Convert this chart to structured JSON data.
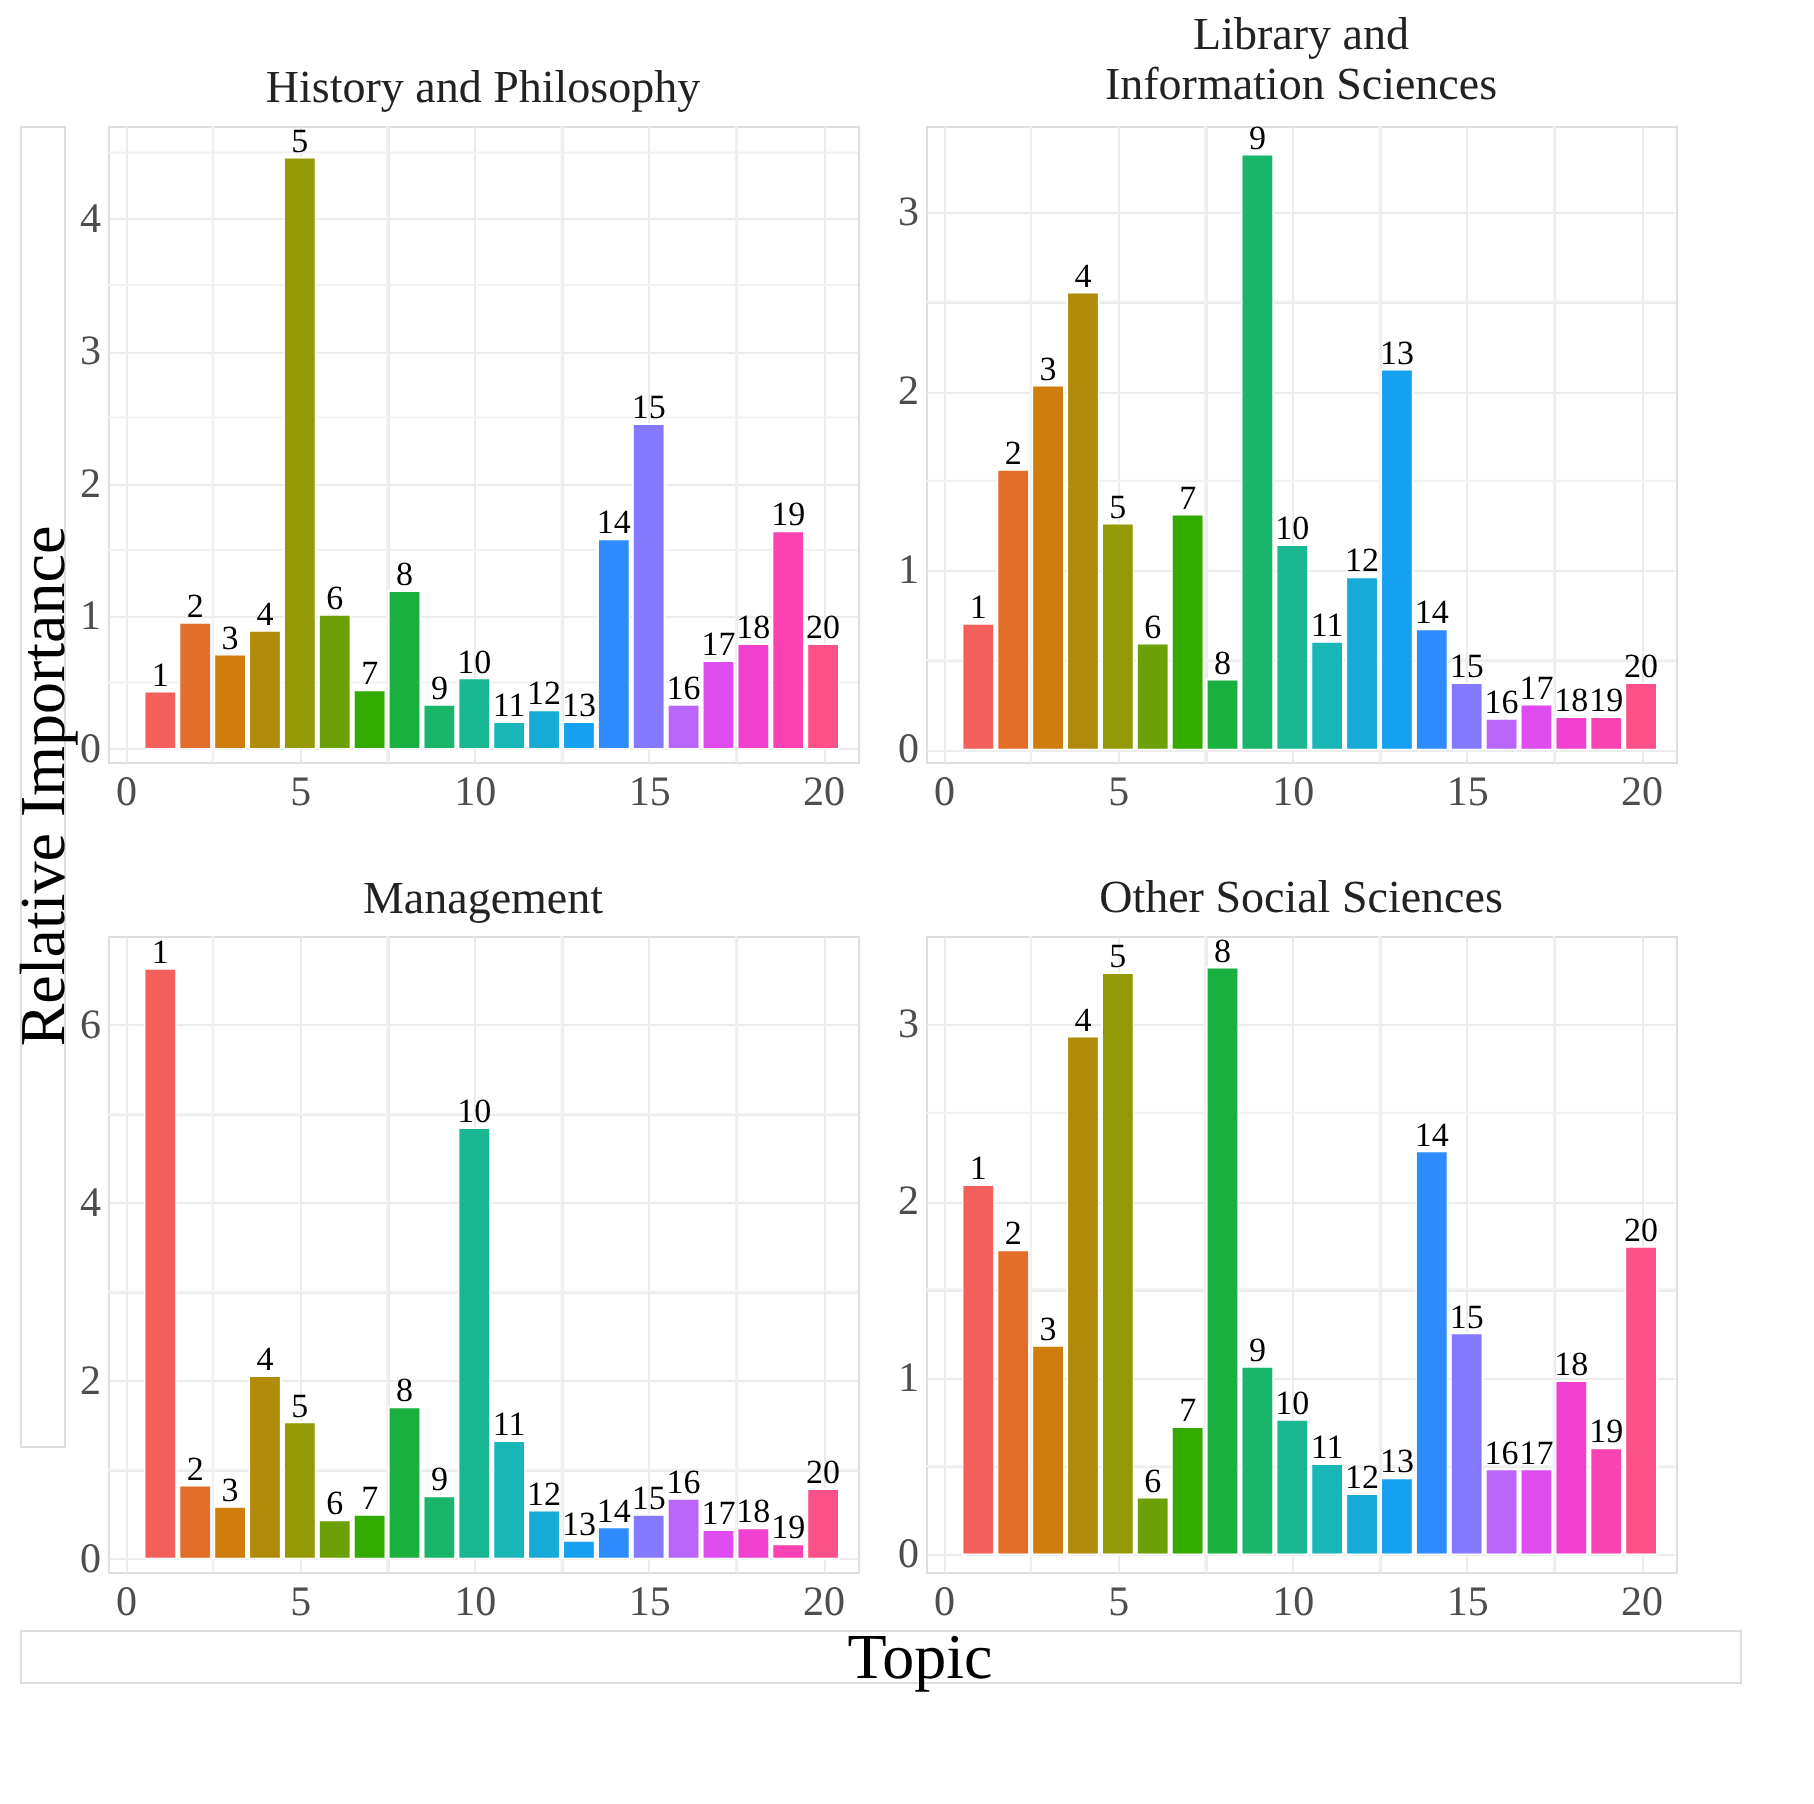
{
  "chart_data": [
    {
      "type": "bar",
      "title": "History and Philosophy",
      "ylabel": "Relative Importance",
      "x": [
        1,
        2,
        3,
        4,
        5,
        6,
        7,
        8,
        9,
        10,
        11,
        12,
        13,
        14,
        15,
        16,
        17,
        18,
        19,
        20
      ],
      "values": [
        0.43,
        0.95,
        0.71,
        0.89,
        4.46,
        1.01,
        0.44,
        1.19,
        0.33,
        0.53,
        0.2,
        0.29,
        0.2,
        1.58,
        2.45,
        0.33,
        0.66,
        0.79,
        1.64,
        0.79
      ],
      "annotations": [
        {
          "text": "1",
          "x": 1,
          "y": 0.43
        },
        {
          "text": "2",
          "x": 2,
          "y": 0.95
        },
        {
          "text": "3",
          "x": 3,
          "y": 0.71
        },
        {
          "text": "4",
          "x": 4,
          "y": 0.89
        },
        {
          "text": "5",
          "x": 5,
          "y": 4.46
        },
        {
          "text": "6",
          "x": 6,
          "y": 1.01
        },
        {
          "text": "7",
          "x": 7,
          "y": 0.44
        },
        {
          "text": "8",
          "x": 8,
          "y": 1.19
        },
        {
          "text": "9",
          "x": 9,
          "y": 0.33
        },
        {
          "text": "10",
          "x": 10,
          "y": 0.53
        },
        {
          "text": "11",
          "x": 11,
          "y": 0.2
        },
        {
          "text": "12",
          "x": 12,
          "y": 0.29
        },
        {
          "text": "13",
          "x": 13,
          "y": 0.2
        },
        {
          "text": "14",
          "x": 14,
          "y": 1.58
        },
        {
          "text": "15",
          "x": 15,
          "y": 2.45
        },
        {
          "text": "16",
          "x": 16,
          "y": 0.33
        },
        {
          "text": "17",
          "x": 17,
          "y": 0.66
        },
        {
          "text": "18",
          "x": 18,
          "y": 0.79
        },
        {
          "text": "19",
          "x": 19,
          "y": 1.64
        },
        {
          "text": "20",
          "x": 20,
          "y": 0.79
        }
      ],
      "colors": [
        "#f35f5a",
        "#e36e2a",
        "#ce7d0a",
        "#b08a08",
        "#949a05",
        "#6ba107",
        "#33aa00",
        "#1ab040",
        "#19b56a",
        "#19b893",
        "#19b6b8",
        "#16abd6",
        "#16a0f0",
        "#2e8cff",
        "#8479ff",
        "#b965fa",
        "#de4bef",
        "#f040d0",
        "#fa42b2",
        "#fc5088"
      ],
      "xlim": [
        -0.5,
        21.0
      ],
      "ylim": [
        -0.1,
        4.7
      ],
      "xticks": [
        0,
        {
          "value": 2.5,
          "label": null
        },
        5,
        {
          "value": 7.5,
          "label": null
        },
        10,
        {
          "value": 12.5,
          "label": null
        },
        15,
        {
          "value": 17.5,
          "label": null
        },
        20
      ],
      "yticks": [
        0,
        {
          "value": 0.5,
          "label": null
        },
        1,
        {
          "value": 1.5,
          "label": null
        },
        2,
        {
          "value": 2.5,
          "label": null
        },
        3,
        {
          "value": 3.5,
          "label": null
        },
        4,
        {
          "value": 4.5,
          "label": null
        }
      ],
      "grid": true
    },
    {
      "type": "bar",
      "title": "Library and\nInformation Sciences",
      "x": [
        1,
        2,
        3,
        4,
        5,
        6,
        7,
        8,
        9,
        10,
        11,
        12,
        13,
        14,
        15,
        16,
        17,
        18,
        19,
        20
      ],
      "values": [
        0.7,
        1.56,
        2.03,
        2.55,
        1.26,
        0.59,
        1.31,
        0.39,
        3.32,
        1.14,
        0.6,
        0.96,
        2.12,
        0.67,
        0.37,
        0.17,
        0.25,
        0.18,
        0.18,
        0.37
      ],
      "annotations": [
        {
          "text": "1",
          "x": 1,
          "y": 0.7
        },
        {
          "text": "2",
          "x": 2,
          "y": 1.56
        },
        {
          "text": "3",
          "x": 3,
          "y": 2.03
        },
        {
          "text": "4",
          "x": 4,
          "y": 2.55
        },
        {
          "text": "5",
          "x": 5,
          "y": 1.26
        },
        {
          "text": "6",
          "x": 6,
          "y": 0.59
        },
        {
          "text": "7",
          "x": 7,
          "y": 1.31
        },
        {
          "text": "8",
          "x": 8,
          "y": 0.39
        },
        {
          "text": "9",
          "x": 9,
          "y": 3.32
        },
        {
          "text": "10",
          "x": 10,
          "y": 1.14
        },
        {
          "text": "11",
          "x": 11,
          "y": 0.6
        },
        {
          "text": "12",
          "x": 12,
          "y": 0.96
        },
        {
          "text": "13",
          "x": 13,
          "y": 2.12
        },
        {
          "text": "14",
          "x": 14,
          "y": 0.67
        },
        {
          "text": "15",
          "x": 15,
          "y": 0.37
        },
        {
          "text": "16",
          "x": 16,
          "y": 0.17
        },
        {
          "text": "17",
          "x": 17,
          "y": 0.25
        },
        {
          "text": "18",
          "x": 18,
          "y": 0.18
        },
        {
          "text": "19",
          "x": 19,
          "y": 0.18
        },
        {
          "text": "20",
          "x": 20,
          "y": 0.37
        }
      ],
      "colors": [
        "#f35f5a",
        "#e36e2a",
        "#ce7d0a",
        "#b08a08",
        "#949a05",
        "#6ba107",
        "#33aa00",
        "#1ab040",
        "#19b56a",
        "#19b893",
        "#19b6b8",
        "#16abd6",
        "#16a0f0",
        "#2e8cff",
        "#8479ff",
        "#b965fa",
        "#de4bef",
        "#f040d0",
        "#fa42b2",
        "#fc5088"
      ],
      "xlim": [
        -0.5,
        21.0
      ],
      "ylim": [
        -0.07,
        3.48
      ],
      "xticks": [
        0,
        {
          "value": 2.5,
          "label": null
        },
        5,
        {
          "value": 7.5,
          "label": null
        },
        10,
        {
          "value": 12.5,
          "label": null
        },
        15,
        {
          "value": 17.5,
          "label": null
        },
        20
      ],
      "yticks": [
        0,
        {
          "value": 0.5,
          "label": null
        },
        1,
        {
          "value": 1.5,
          "label": null
        },
        2,
        {
          "value": 2.5,
          "label": null
        },
        3
      ],
      "grid": true
    },
    {
      "type": "bar",
      "title": "Management",
      "xlabel": "Topic",
      "x": [
        1,
        2,
        3,
        4,
        5,
        6,
        7,
        8,
        9,
        10,
        11,
        12,
        13,
        14,
        15,
        16,
        17,
        18,
        19,
        20
      ],
      "values": [
        6.63,
        0.82,
        0.58,
        2.05,
        1.53,
        0.43,
        0.49,
        1.7,
        0.7,
        4.84,
        1.32,
        0.54,
        0.2,
        0.35,
        0.49,
        0.67,
        0.32,
        0.34,
        0.16,
        0.78
      ],
      "annotations": [
        {
          "text": "1",
          "x": 1,
          "y": 6.63
        },
        {
          "text": "2",
          "x": 2,
          "y": 0.82
        },
        {
          "text": "3",
          "x": 3,
          "y": 0.58
        },
        {
          "text": "4",
          "x": 4,
          "y": 2.05
        },
        {
          "text": "5",
          "x": 5,
          "y": 1.53
        },
        {
          "text": "6",
          "x": 6,
          "y": 0.43
        },
        {
          "text": "7",
          "x": 7,
          "y": 0.49
        },
        {
          "text": "8",
          "x": 8,
          "y": 1.7
        },
        {
          "text": "9",
          "x": 9,
          "y": 0.7
        },
        {
          "text": "10",
          "x": 10,
          "y": 4.84
        },
        {
          "text": "11",
          "x": 11,
          "y": 1.32
        },
        {
          "text": "12",
          "x": 12,
          "y": 0.54
        },
        {
          "text": "13",
          "x": 13,
          "y": 0.2
        },
        {
          "text": "14",
          "x": 14,
          "y": 0.35
        },
        {
          "text": "15",
          "x": 15,
          "y": 0.49
        },
        {
          "text": "16",
          "x": 16,
          "y": 0.67
        },
        {
          "text": "17",
          "x": 17,
          "y": 0.32
        },
        {
          "text": "18",
          "x": 18,
          "y": 0.34
        },
        {
          "text": "19",
          "x": 19,
          "y": 0.16
        },
        {
          "text": "20",
          "x": 20,
          "y": 0.78
        }
      ],
      "colors": [
        "#f35f5a",
        "#e36e2a",
        "#ce7d0a",
        "#b08a08",
        "#949a05",
        "#6ba107",
        "#33aa00",
        "#1ab040",
        "#19b56a",
        "#19b893",
        "#19b6b8",
        "#16abd6",
        "#16a0f0",
        "#2e8cff",
        "#8479ff",
        "#b965fa",
        "#de4bef",
        "#f040d0",
        "#fa42b2",
        "#fc5088"
      ],
      "xlim": [
        -0.5,
        21.0
      ],
      "ylim": [
        -0.15,
        7.0
      ],
      "xticks": [
        0,
        {
          "value": 2.5,
          "label": null
        },
        5,
        {
          "value": 7.5,
          "label": null
        },
        10,
        {
          "value": 12.5,
          "label": null
        },
        15,
        {
          "value": 17.5,
          "label": null
        },
        20
      ],
      "yticks": [
        0,
        {
          "value": 1,
          "label": null
        },
        2,
        {
          "value": 3,
          "label": null
        },
        4,
        {
          "value": 5,
          "label": null
        },
        6
      ],
      "grid": true
    },
    {
      "type": "bar",
      "title": "Other Social Sciences",
      "x": [
        1,
        2,
        3,
        4,
        5,
        6,
        7,
        8,
        9,
        10,
        11,
        12,
        13,
        14,
        15,
        16,
        17,
        18,
        19,
        20
      ],
      "values": [
        2.09,
        1.72,
        1.18,
        2.93,
        3.29,
        0.32,
        0.72,
        3.32,
        1.06,
        0.76,
        0.51,
        0.34,
        0.43,
        2.28,
        1.25,
        0.48,
        0.48,
        0.98,
        0.6,
        1.74
      ],
      "annotations": [
        {
          "text": "1",
          "x": 1,
          "y": 2.09
        },
        {
          "text": "2",
          "x": 2,
          "y": 1.72
        },
        {
          "text": "3",
          "x": 3,
          "y": 1.18
        },
        {
          "text": "4",
          "x": 4,
          "y": 2.93
        },
        {
          "text": "5",
          "x": 5,
          "y": 3.29
        },
        {
          "text": "6",
          "x": 6,
          "y": 0.32
        },
        {
          "text": "7",
          "x": 7,
          "y": 0.72
        },
        {
          "text": "8",
          "x": 8,
          "y": 3.32
        },
        {
          "text": "9",
          "x": 9,
          "y": 1.06
        },
        {
          "text": "10",
          "x": 10,
          "y": 0.76
        },
        {
          "text": "11",
          "x": 11,
          "y": 0.51
        },
        {
          "text": "12",
          "x": 12,
          "y": 0.34
        },
        {
          "text": "13",
          "x": 13,
          "y": 0.43
        },
        {
          "text": "14",
          "x": 14,
          "y": 2.28
        },
        {
          "text": "15",
          "x": 15,
          "y": 1.25
        },
        {
          "text": "16",
          "x": 16,
          "y": 0.48
        },
        {
          "text": "17",
          "x": 17,
          "y": 0.48
        },
        {
          "text": "18",
          "x": 18,
          "y": 0.98
        },
        {
          "text": "19",
          "x": 19,
          "y": 0.6
        },
        {
          "text": "20",
          "x": 20,
          "y": 1.74
        }
      ],
      "colors": [
        "#f35f5a",
        "#e36e2a",
        "#ce7d0a",
        "#b08a08",
        "#949a05",
        "#6ba107",
        "#33aa00",
        "#1ab040",
        "#19b56a",
        "#19b893",
        "#19b6b8",
        "#16abd6",
        "#16a0f0",
        "#2e8cff",
        "#8479ff",
        "#b965fa",
        "#de4bef",
        "#f040d0",
        "#fa42b2",
        "#fc5088"
      ],
      "xlim": [
        -0.5,
        21.0
      ],
      "ylim": [
        -0.1,
        3.5
      ],
      "xticks": [
        0,
        {
          "value": 2.5,
          "label": null
        },
        5,
        {
          "value": 7.5,
          "label": null
        },
        10,
        {
          "value": 12.5,
          "label": null
        },
        15,
        {
          "value": 17.5,
          "label": null
        },
        20
      ],
      "yticks": [
        0,
        {
          "value": 0.5,
          "label": null
        },
        1,
        {
          "value": 1.5,
          "label": null
        },
        2,
        {
          "value": 2.5,
          "label": null
        },
        3
      ],
      "grid": true
    }
  ]
}
